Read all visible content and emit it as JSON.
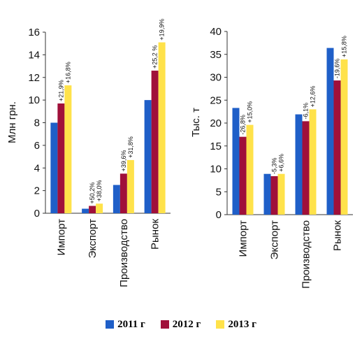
{
  "chart_data": [
    {
      "type": "bar",
      "ylabel": "Млн грн.",
      "ylim": [
        0,
        16
      ],
      "yticks": [
        0,
        2,
        4,
        6,
        8,
        10,
        12,
        14,
        16
      ],
      "categories": [
        "Импорт",
        "Экспорт",
        "Производство",
        "Рынок"
      ],
      "series": [
        {
          "name": "2011 г",
          "values": [
            8.0,
            0.4,
            2.5,
            10.0
          ]
        },
        {
          "name": "2012 г",
          "values": [
            9.7,
            0.65,
            3.5,
            12.6
          ]
        },
        {
          "name": "2013 г",
          "values": [
            11.3,
            0.85,
            4.7,
            15.1
          ]
        }
      ],
      "annotations": [
        [
          "+21,9%",
          "+16,8%"
        ],
        [
          "+50,2%",
          "+38,0%"
        ],
        [
          "+39,6%",
          "+31,8%"
        ],
        [
          "+25,2 %",
          "+19,9%"
        ]
      ],
      "grid": false
    },
    {
      "type": "bar",
      "ylabel": "Тыс. т",
      "ylim": [
        0,
        40
      ],
      "yticks": [
        0,
        5,
        10,
        15,
        20,
        25,
        30,
        35,
        40
      ],
      "categories": [
        "Импорт",
        "Экспорт",
        "Производство",
        "Рынок"
      ],
      "series": [
        {
          "name": "2011 г",
          "values": [
            23.3,
            8.9,
            21.9,
            36.4
          ]
        },
        {
          "name": "2012 г",
          "values": [
            17.0,
            8.4,
            20.4,
            29.3
          ]
        },
        {
          "name": "2013 г",
          "values": [
            19.6,
            8.9,
            23.0,
            33.9
          ]
        }
      ],
      "annotations": [
        [
          "-26,8%",
          "+15,0%"
        ],
        [
          "-5,3%",
          "+6,6%"
        ],
        [
          "-6,1%",
          "+12,6%"
        ],
        [
          "-19,6%",
          "+15,8%"
        ]
      ],
      "grid": false
    }
  ],
  "legend": {
    "items": [
      {
        "label": "2011 г",
        "color": "#1f5fc8"
      },
      {
        "label": "2012 г",
        "color": "#a0103a"
      },
      {
        "label": "2013 г",
        "color": "#ffe24a"
      }
    ],
    "placement": "bottom"
  }
}
